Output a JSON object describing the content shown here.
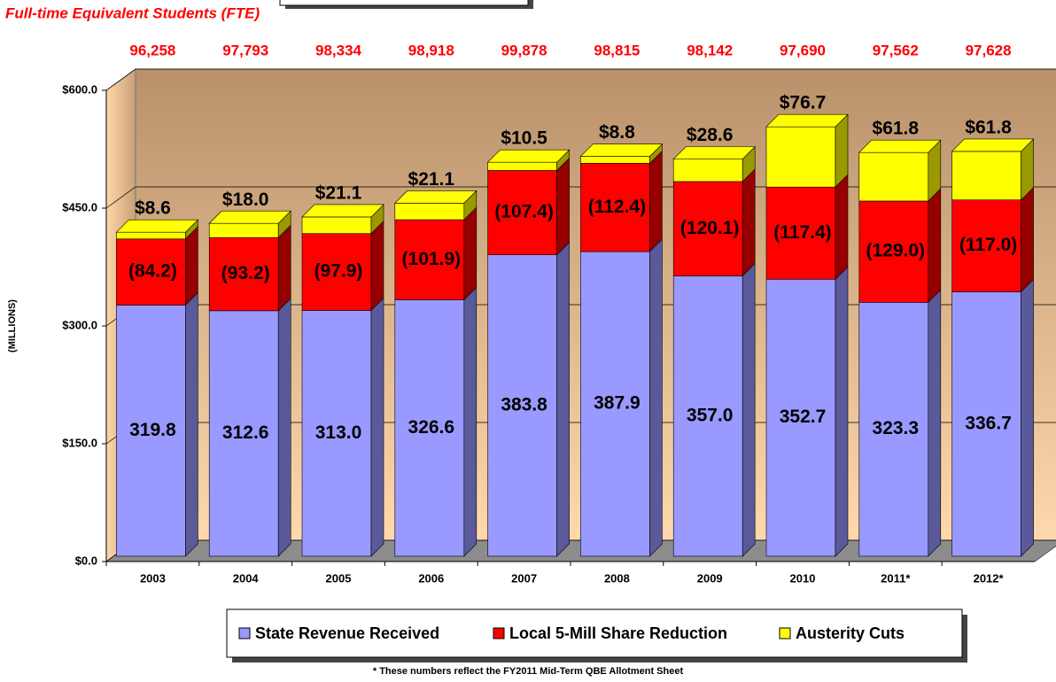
{
  "chart_data": {
    "type": "bar",
    "stacked": true,
    "subtitle": "Full-time Equivalent Students (FTE)",
    "fte_labels": [
      "96,258",
      "97,793",
      "98,334",
      "98,918",
      "99,878",
      "98,815",
      "98,142",
      "97,690",
      "97,562",
      "97,628"
    ],
    "ylabel": "(MILLIONS)",
    "categories": [
      "2003",
      "2004",
      "2005",
      "2006",
      "2007",
      "2008",
      "2009",
      "2010",
      "2011*",
      "2012*"
    ],
    "series": [
      {
        "name": "State Revenue Received",
        "color": "#9999ff",
        "side_color": "#5a5a9a",
        "values": [
          319.8,
          312.6,
          313.0,
          326.6,
          383.8,
          387.9,
          357.0,
          352.7,
          323.3,
          336.7
        ],
        "value_labels": [
          "319.8",
          "312.6",
          "313.0",
          "326.6",
          "383.8",
          "387.9",
          "357.0",
          "352.7",
          "323.3",
          "336.7"
        ]
      },
      {
        "name": "Local 5-Mill Share Reduction",
        "color": "#ff0000",
        "side_color": "#960000",
        "values": [
          84.2,
          93.2,
          97.9,
          101.9,
          107.4,
          112.4,
          120.1,
          117.4,
          129.0,
          117.0
        ],
        "value_labels": [
          "(84.2)",
          "(93.2)",
          "(97.9)",
          "(101.9)",
          "(107.4)",
          "(112.4)",
          "(120.1)",
          "(117.4)",
          "(129.0)",
          "(117.0)"
        ]
      },
      {
        "name": "Austerity Cuts",
        "color": "#ffff00",
        "side_color": "#9a9a00",
        "values": [
          8.6,
          18.0,
          21.1,
          21.1,
          10.5,
          8.8,
          28.6,
          76.7,
          61.8,
          61.8
        ],
        "value_labels": [
          "$8.6",
          "$18.0",
          "$21.1",
          "$21.1",
          "$10.5",
          "$8.8",
          "$28.6",
          "$76.7",
          "$61.8",
          "$61.8"
        ]
      }
    ],
    "ylim": [
      0,
      600
    ],
    "yticks": [
      {
        "value": 0,
        "label": "$0.0"
      },
      {
        "value": 150,
        "label": "$150.0"
      },
      {
        "value": 300,
        "label": "$300.0"
      },
      {
        "value": 450,
        "label": "$450.0"
      },
      {
        "value": 600,
        "label": "$600.0"
      }
    ],
    "grid": true,
    "legend": "bottom",
    "footnote": "* These numbers reflect the FY2011 Mid-Term QBE Allotment Sheet"
  }
}
